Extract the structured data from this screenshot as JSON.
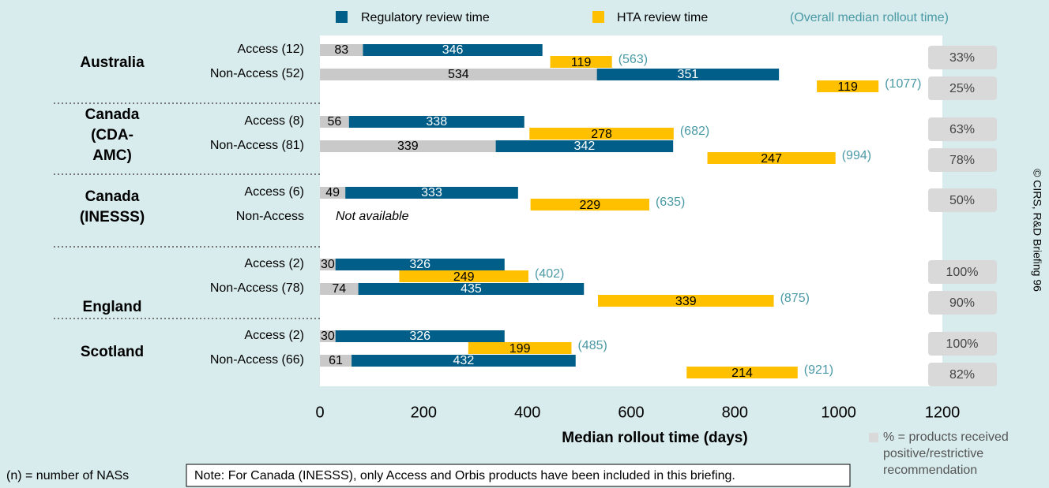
{
  "chart_data": {
    "type": "gantt",
    "groups": [
      {
        "lines": [
          "Australia"
        ]
      },
      {
        "lines": [
          "Canada",
          "(CDA-",
          "AMC)"
        ]
      },
      {
        "lines": [
          "Canada",
          "(INESSS)"
        ]
      },
      {
        "lines": [
          "England"
        ]
      },
      {
        "lines": [
          "Scotland"
        ]
      }
    ],
    "categories": [
      "Access (12)",
      "Non-Access (52)",
      "Access (8)",
      "Non-Access (81)",
      "Access (6)",
      "Non-Access",
      "Access (2)",
      "Non-Access (78)",
      "Access (2)",
      "Non-Access (66)"
    ],
    "series": [
      {
        "color": "#c9c9c9",
        "values": [
          83,
          534,
          56,
          339,
          49,
          null,
          30,
          74,
          30,
          61
        ]
      },
      {
        "name": "Regulatory review time",
        "color": "#005e88",
        "values": [
          346,
          351,
          338,
          342,
          333,
          null,
          326,
          435,
          326,
          432
        ]
      },
      {
        "name": "HTA review time",
        "color": "#ffc000",
        "values": [
          119,
          119,
          278,
          247,
          229,
          null,
          249,
          339,
          199,
          214
        ]
      },
      {
        "name": "(Overall median rollout time)",
        "color": "#4a9aa5",
        "values": [
          563,
          1077,
          682,
          994,
          635,
          null,
          402,
          875,
          485,
          921
        ],
        "value_labels": [
          "(563)",
          "(1077)",
          "(682)",
          "(994)",
          "(635)",
          null,
          "(402)",
          "(875)",
          "(485)",
          "(921)"
        ]
      }
    ],
    "percent": {
      "color": "#d9d9d9",
      "values": [
        33,
        25,
        63,
        78,
        50,
        null,
        100,
        90,
        100,
        82
      ],
      "value_labels": [
        "33%",
        "25%",
        "63%",
        "78%",
        "50%",
        null,
        "100%",
        "90%",
        "100%",
        "82%"
      ],
      "legend": [
        "% = products received",
        "positive/restrictive",
        "recommendation"
      ]
    },
    "annotations": {
      "not_available": "Not available",
      "n_note": "(n) = number of NASs",
      "note": "Note: For Canada (INESSS), only Access and Orbis products have been included in this briefing.",
      "copyright": "© CIRS, R&D Briefing 96"
    },
    "xlabel": "Median rollout time (days)",
    "xlim": [
      0,
      1200
    ],
    "xticks": [
      0,
      200,
      400,
      600,
      800,
      1000,
      1200
    ]
  }
}
